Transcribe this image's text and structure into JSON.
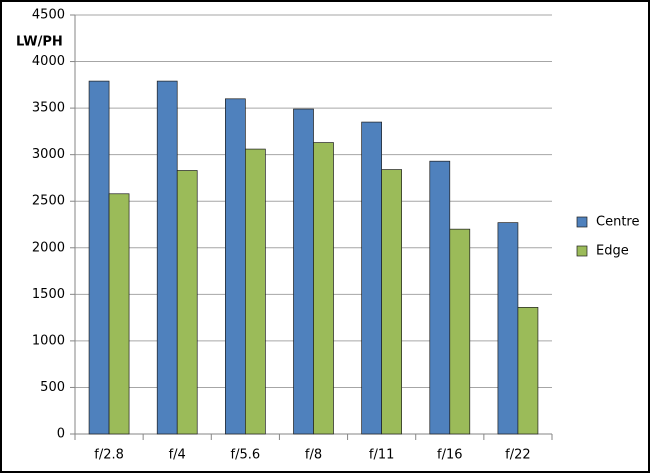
{
  "chart_data": {
    "type": "bar",
    "y_label": "LW/PH",
    "categories": [
      "f/2.8",
      "f/4",
      "f/5.6",
      "f/8",
      "f/11",
      "f/16",
      "f/22"
    ],
    "series": [
      {
        "name": "Centre",
        "color": "#4f81bd",
        "values": [
          3790,
          3790,
          3600,
          3490,
          3350,
          2930,
          2270
        ]
      },
      {
        "name": "Edge",
        "color": "#9bbb59",
        "values": [
          2580,
          2830,
          3060,
          3130,
          2840,
          2200,
          1360
        ]
      }
    ],
    "ylim": [
      0,
      4500
    ],
    "yticks": [
      0,
      500,
      1000,
      1500,
      2000,
      2500,
      3000,
      3500,
      4000,
      4500
    ],
    "grid": true,
    "legend": "right"
  }
}
